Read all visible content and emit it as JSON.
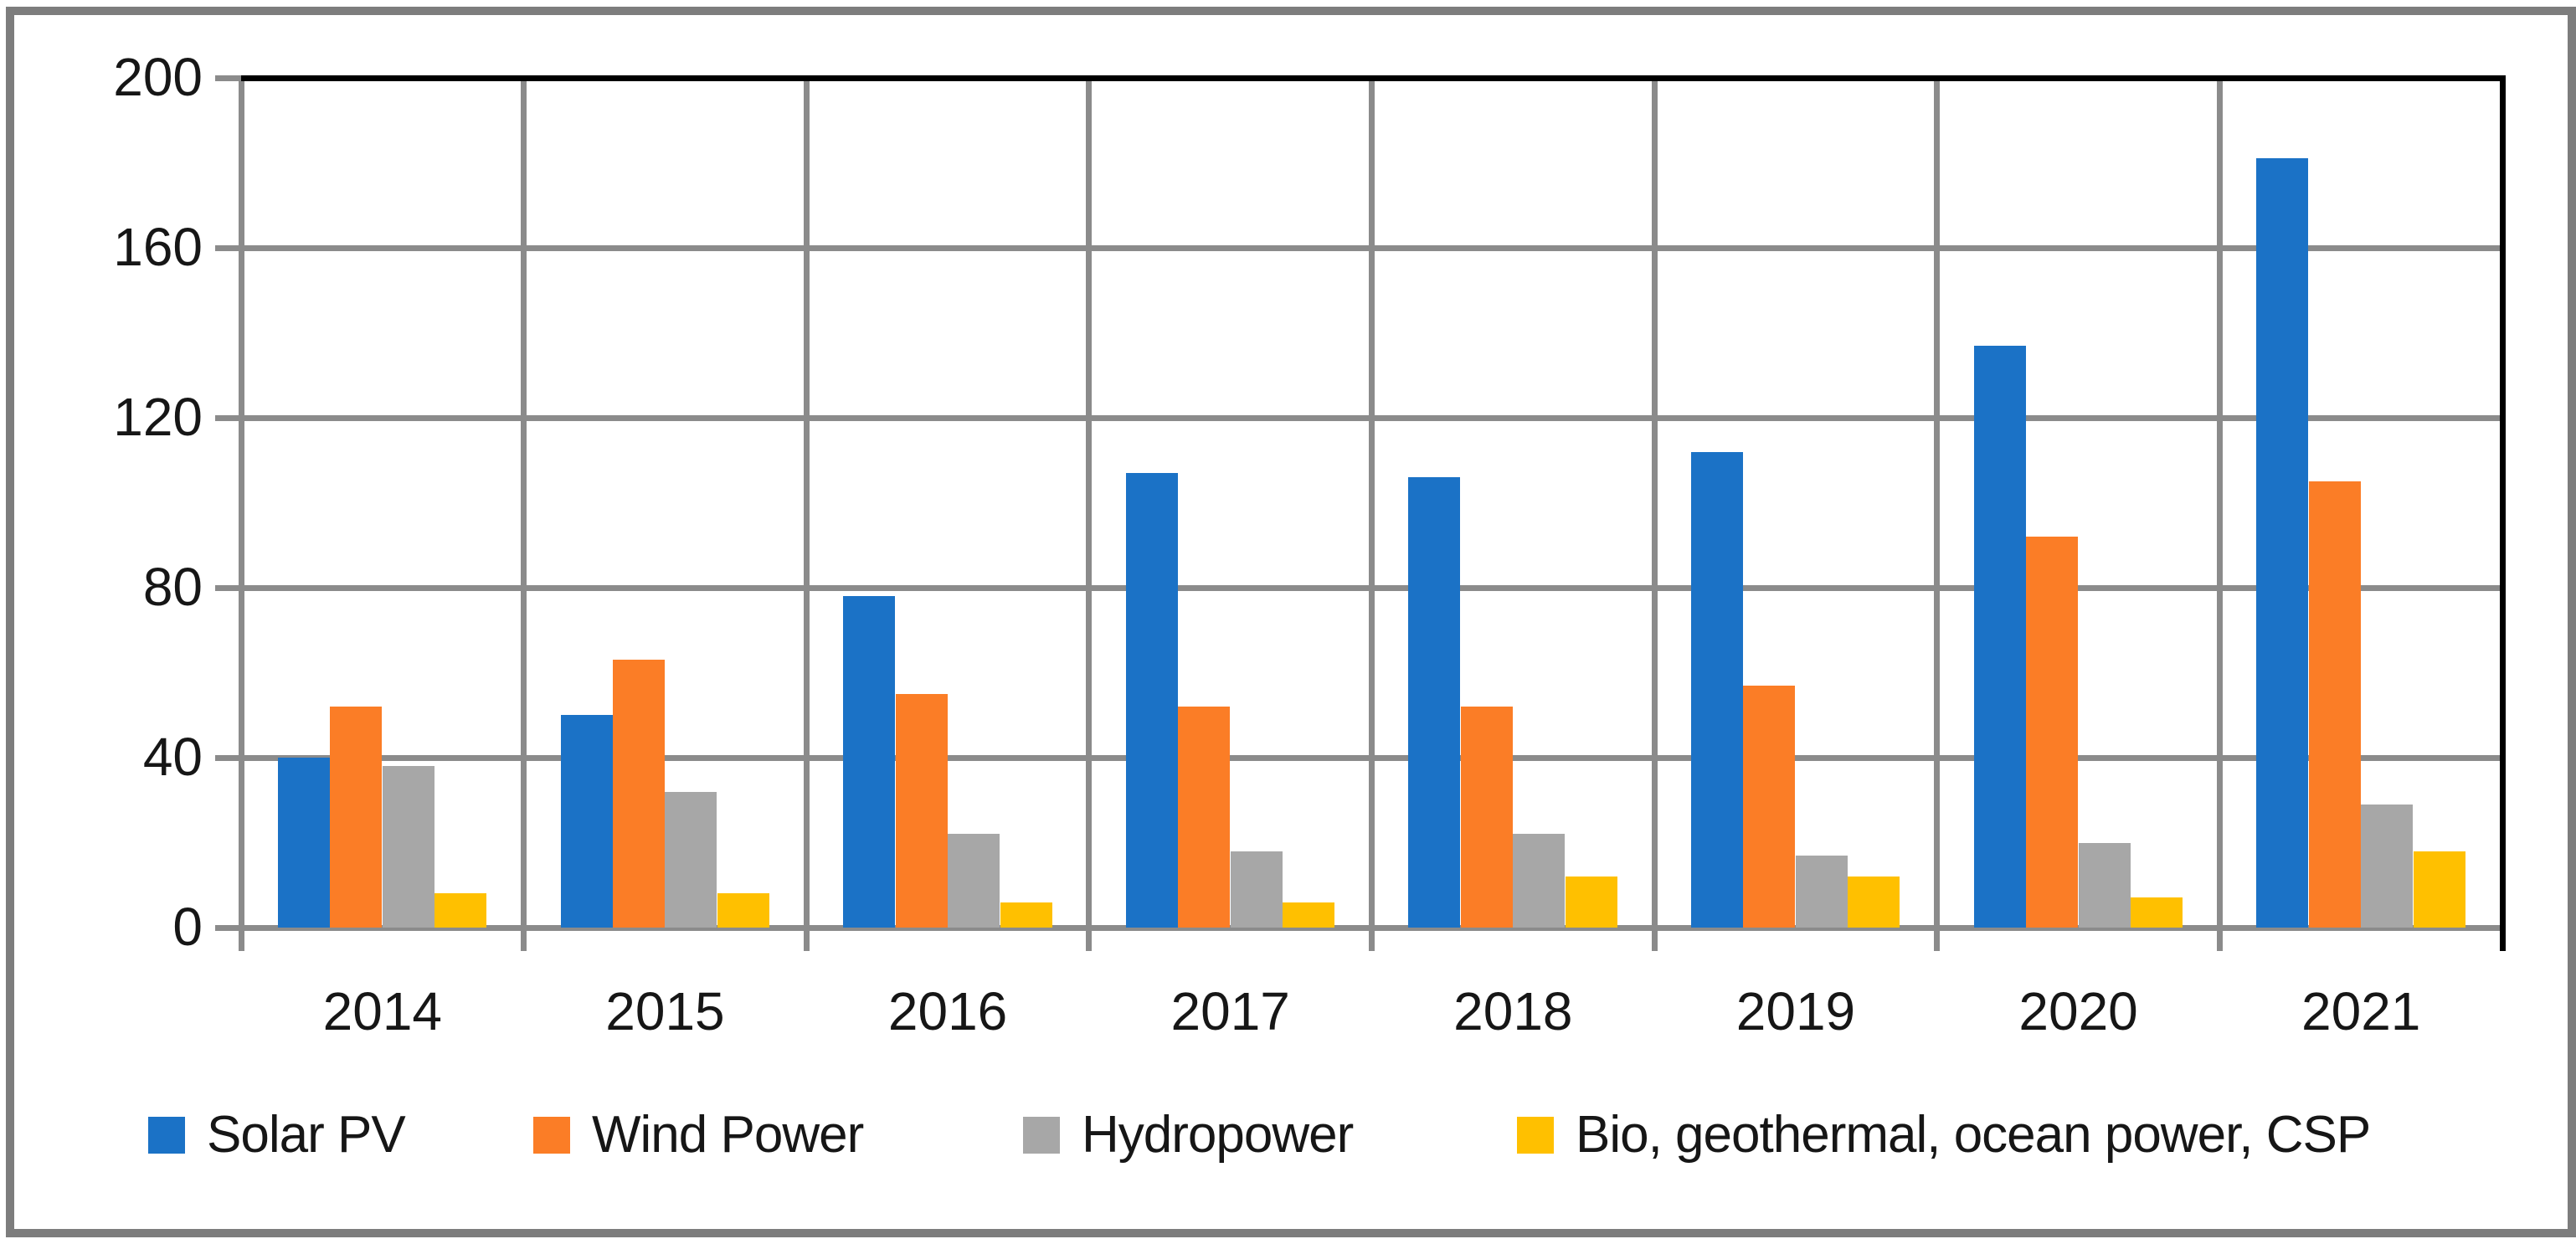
{
  "chart_data": {
    "type": "bar",
    "title": "",
    "xlabel": "",
    "ylabel": "",
    "categories": [
      "2014",
      "2015",
      "2016",
      "2017",
      "2018",
      "2019",
      "2020",
      "2021"
    ],
    "series": [
      {
        "name": "Solar PV",
        "color": "#1b72c6",
        "values": [
          40,
          50,
          78,
          107,
          106,
          112,
          137,
          181
        ]
      },
      {
        "name": "Wind Power",
        "color": "#fb7d26",
        "values": [
          52,
          63,
          55,
          52,
          52,
          57,
          92,
          105
        ]
      },
      {
        "name": "Hydropower",
        "color": "#a7a7a7",
        "values": [
          38,
          32,
          22,
          18,
          22,
          17,
          20,
          29
        ]
      },
      {
        "name": "Bio, geothermal, ocean power, CSP",
        "color": "#ffc000",
        "values": [
          8,
          8,
          6,
          6,
          12,
          12,
          7,
          18
        ]
      }
    ],
    "ylim": [
      0,
      200
    ],
    "yticks": [
      0,
      40,
      80,
      120,
      160,
      200
    ],
    "grid": true,
    "legend_position": "bottom"
  },
  "style": {
    "gridline_color": "#8b8b8b",
    "axis_color": "#8b8b8b",
    "plot_border_color": "#000000",
    "frame_color": "#7d7d7d",
    "text_color": "#161616",
    "background": "#ffffff"
  }
}
